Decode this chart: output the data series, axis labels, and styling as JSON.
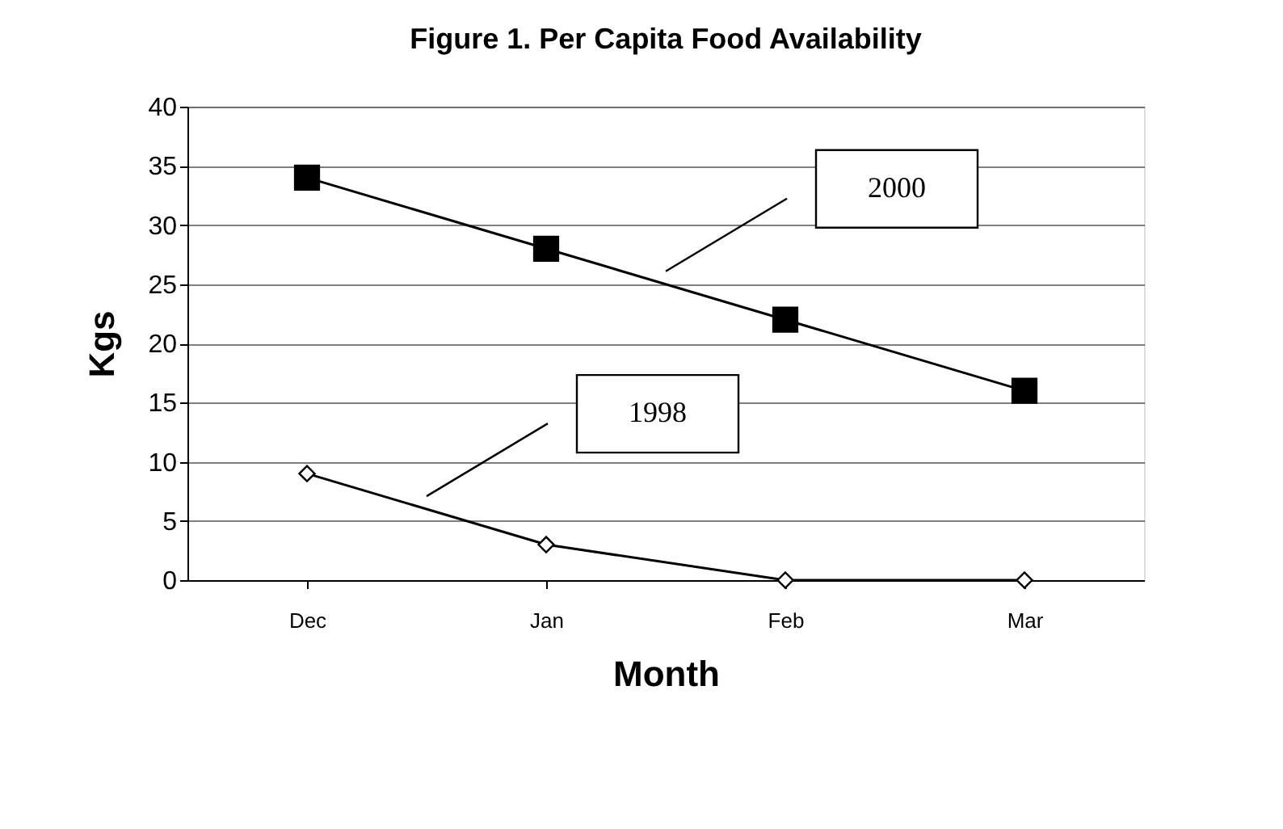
{
  "chart_data": {
    "type": "line",
    "title": "Figure 1. Per Capita Food Availability",
    "xlabel": "Month",
    "ylabel": "Kgs",
    "categories": [
      "Dec",
      "Jan",
      "Feb",
      "Mar"
    ],
    "series": [
      {
        "name": "2000",
        "color": "#000000",
        "marker": "square",
        "values": [
          34,
          28,
          22,
          16
        ]
      },
      {
        "name": "1998",
        "color": "#000000",
        "marker": "diamond",
        "values": [
          9,
          3,
          0,
          0
        ]
      }
    ],
    "ylim": [
      0,
      40
    ],
    "yticks": [
      0,
      5,
      10,
      15,
      20,
      25,
      30,
      35,
      40
    ],
    "grid": "y",
    "legend": false
  }
}
